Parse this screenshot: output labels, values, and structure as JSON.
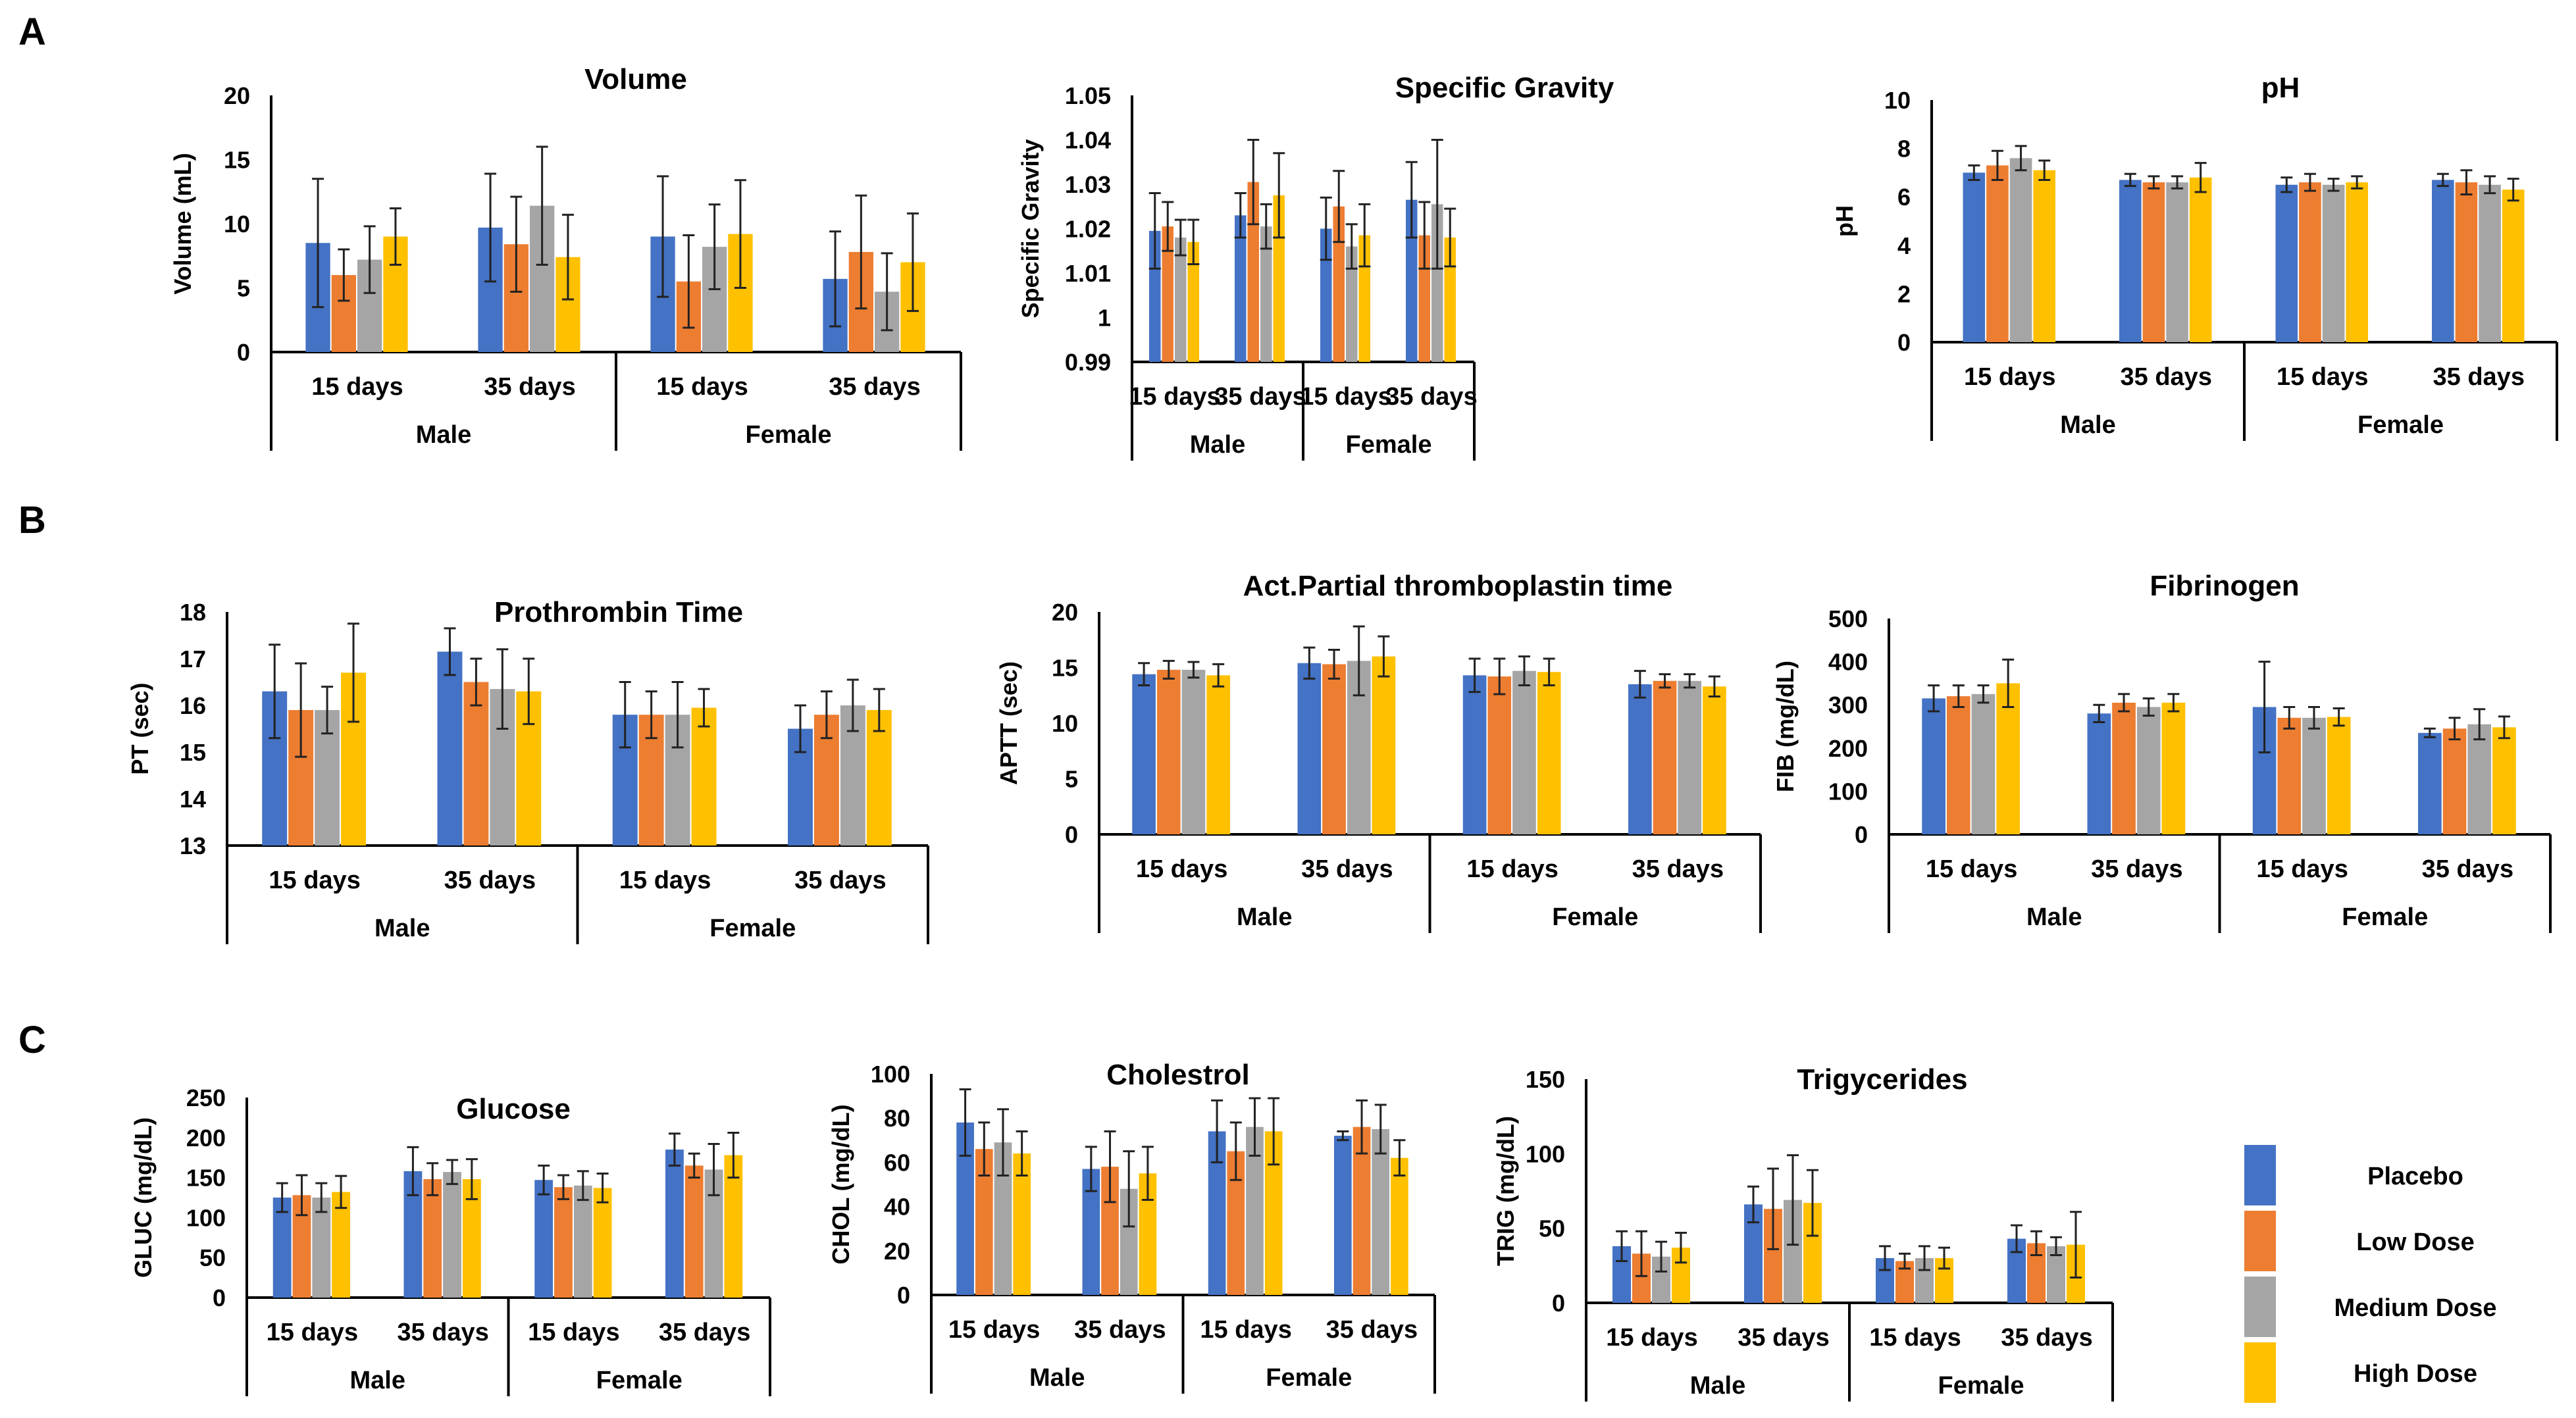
{
  "colors": {
    "placebo": "#4472C4",
    "low": "#ED7D31",
    "medium": "#A5A5A5",
    "high": "#FFC000",
    "axis": "#000000",
    "error": "#222222"
  },
  "legend": {
    "items": [
      {
        "label": "Placebo",
        "color": "#4472C4"
      },
      {
        "label": "Low Dose",
        "color": "#ED7D31"
      },
      {
        "label": "Medium Dose",
        "color": "#A5A5A5"
      },
      {
        "label": "High Dose",
        "color": "#FFC000"
      }
    ]
  },
  "panels": [
    {
      "label": "A"
    },
    {
      "label": "B"
    },
    {
      "label": "C"
    }
  ],
  "chart_data": [
    {
      "id": "volume",
      "type": "bar",
      "title": "Volume",
      "ylabel": "Volume (mL)",
      "ylim": [
        0,
        20
      ],
      "yticks": [
        "0",
        "5",
        "10",
        "15",
        "20"
      ],
      "groups": [
        "15 days",
        "35 days",
        "15 days",
        "35 days"
      ],
      "sexes": [
        "Male",
        "Female"
      ],
      "series": [
        {
          "name": "Placebo",
          "values": [
            8.5,
            9.7,
            9,
            5.7
          ],
          "errors": [
            5,
            4.2,
            4.7,
            3.7
          ]
        },
        {
          "name": "Low Dose",
          "values": [
            6,
            8.4,
            5.5,
            7.8
          ],
          "errors": [
            2,
            3.7,
            3.6,
            4.4
          ]
        },
        {
          "name": "Medium Dose",
          "values": [
            7.2,
            11.4,
            8.2,
            4.7
          ],
          "errors": [
            2.6,
            4.6,
            3.3,
            3
          ]
        },
        {
          "name": "High Dose",
          "values": [
            9,
            7.4,
            9.2,
            7
          ],
          "errors": [
            2.2,
            3.3,
            4.2,
            3.8
          ]
        }
      ]
    },
    {
      "id": "sg",
      "type": "bar",
      "title": "Specific Gravity",
      "ylabel": "Specific Gravity",
      "ylim": [
        0.99,
        1.05
      ],
      "yticks": [
        "0.99",
        "1",
        "1.01",
        "1.02",
        "1.03",
        "1.04",
        "1.05"
      ],
      "groups": [
        "15 days",
        "35 days",
        "15 days",
        "35 days"
      ],
      "sexes": [
        "Male",
        "Female"
      ],
      "series": [
        {
          "name": "Placebo",
          "values": [
            1.0195,
            1.023,
            1.02,
            1.0265
          ],
          "errors": [
            0.0085,
            0.005,
            0.007,
            0.0085
          ]
        },
        {
          "name": "Low Dose",
          "values": [
            1.0205,
            1.0305,
            1.025,
            1.0185
          ],
          "errors": [
            0.0055,
            0.0095,
            0.008,
            0.0075
          ]
        },
        {
          "name": "Medium Dose",
          "values": [
            1.018,
            1.0205,
            1.016,
            1.0255
          ],
          "errors": [
            0.004,
            0.005,
            0.005,
            0.0145
          ]
        },
        {
          "name": "High Dose",
          "values": [
            1.017,
            1.0275,
            1.0185,
            1.018
          ],
          "errors": [
            0.005,
            0.0095,
            0.007,
            0.0065
          ]
        }
      ]
    },
    {
      "id": "ph",
      "type": "bar",
      "title": "pH",
      "ylabel": "pH",
      "ylim": [
        0,
        10
      ],
      "yticks": [
        "0",
        "2",
        "4",
        "6",
        "8",
        "10"
      ],
      "groups": [
        "15 days",
        "35 days",
        "15 days",
        "35 days"
      ],
      "sexes": [
        "Male",
        "Female"
      ],
      "series": [
        {
          "name": "Placebo",
          "values": [
            7,
            6.7,
            6.5,
            6.7
          ],
          "errors": [
            0.3,
            0.25,
            0.3,
            0.25
          ]
        },
        {
          "name": "Low Dose",
          "values": [
            7.3,
            6.6,
            6.6,
            6.6
          ],
          "errors": [
            0.6,
            0.25,
            0.35,
            0.5
          ]
        },
        {
          "name": "Medium Dose",
          "values": [
            7.6,
            6.6,
            6.5,
            6.5
          ],
          "errors": [
            0.5,
            0.25,
            0.25,
            0.35
          ]
        },
        {
          "name": "High Dose",
          "values": [
            7.1,
            6.8,
            6.6,
            6.3
          ],
          "errors": [
            0.4,
            0.6,
            0.25,
            0.45
          ]
        }
      ]
    },
    {
      "id": "pt",
      "type": "bar",
      "title": "Prothrombin Time",
      "ylabel": "PT (sec)",
      "ylim": [
        13,
        18
      ],
      "yticks": [
        "13",
        "14",
        "15",
        "16",
        "17",
        "18"
      ],
      "groups": [
        "15 days",
        "35 days",
        "15 days",
        "35 days"
      ],
      "sexes": [
        "Male",
        "Female"
      ],
      "series": [
        {
          "name": "Placebo",
          "values": [
            16.3,
            17.15,
            15.8,
            15.5
          ],
          "errors": [
            1,
            0.5,
            0.7,
            0.5
          ]
        },
        {
          "name": "Low Dose",
          "values": [
            15.9,
            16.5,
            15.8,
            15.8
          ],
          "errors": [
            1,
            0.5,
            0.5,
            0.5
          ]
        },
        {
          "name": "Medium Dose",
          "values": [
            15.9,
            16.35,
            15.8,
            16
          ],
          "errors": [
            0.5,
            0.85,
            0.7,
            0.55
          ]
        },
        {
          "name": "High Dose",
          "values": [
            16.7,
            16.3,
            15.95,
            15.9
          ],
          "errors": [
            1.05,
            0.7,
            0.4,
            0.45
          ]
        }
      ]
    },
    {
      "id": "aptt",
      "type": "bar",
      "title": "Act.Partial thromboplastin time",
      "ylabel": "APTT (sec)",
      "ylim": [
        0,
        20
      ],
      "yticks": [
        "0",
        "5",
        "10",
        "15",
        "20"
      ],
      "groups": [
        "15 days",
        "35 days",
        "15 days",
        "35 days"
      ],
      "sexes": [
        "Male",
        "Female"
      ],
      "series": [
        {
          "name": "Placebo",
          "values": [
            14.4,
            15.4,
            14.3,
            13.5
          ],
          "errors": [
            1,
            1.4,
            1.5,
            1.2
          ]
        },
        {
          "name": "Low Dose",
          "values": [
            14.8,
            15.3,
            14.2,
            13.8
          ],
          "errors": [
            0.8,
            1.3,
            1.6,
            0.6
          ]
        },
        {
          "name": "Medium Dose",
          "values": [
            14.8,
            15.6,
            14.7,
            13.8
          ],
          "errors": [
            0.7,
            3.1,
            1.3,
            0.6
          ]
        },
        {
          "name": "High Dose",
          "values": [
            14.3,
            16,
            14.6,
            13.3
          ],
          "errors": [
            1,
            1.8,
            1.2,
            0.9
          ]
        }
      ]
    },
    {
      "id": "fib",
      "type": "bar",
      "title": "Fibrinogen",
      "ylabel": "FIB (mg/dL)",
      "ylim": [
        0,
        500
      ],
      "yticks": [
        "0",
        "100",
        "200",
        "300",
        "400",
        "500"
      ],
      "groups": [
        "15 days",
        "35 days",
        "15 days",
        "35 days"
      ],
      "sexes": [
        "Male",
        "Female"
      ],
      "series": [
        {
          "name": "Placebo",
          "values": [
            315,
            280,
            295,
            235
          ],
          "errors": [
            30,
            20,
            105,
            10
          ]
        },
        {
          "name": "Low Dose",
          "values": [
            320,
            305,
            270,
            245
          ],
          "errors": [
            25,
            20,
            25,
            25
          ]
        },
        {
          "name": "Medium Dose",
          "values": [
            325,
            295,
            270,
            255
          ],
          "errors": [
            20,
            20,
            25,
            35
          ]
        },
        {
          "name": "High Dose",
          "values": [
            350,
            305,
            272,
            248
          ],
          "errors": [
            55,
            20,
            20,
            25
          ]
        }
      ]
    },
    {
      "id": "gluc",
      "type": "bar",
      "title": "Glucose",
      "ylabel": "GLUC (mg/dL)",
      "ylim": [
        0,
        250
      ],
      "yticks": [
        "0",
        "50",
        "100",
        "150",
        "200",
        "250"
      ],
      "groups": [
        "15 days",
        "35 days",
        "15 days",
        "35 days"
      ],
      "sexes": [
        "Male",
        "Female"
      ],
      "series": [
        {
          "name": "Placebo",
          "values": [
            125,
            158,
            147,
            185
          ],
          "errors": [
            18,
            30,
            18,
            20
          ]
        },
        {
          "name": "Low Dose",
          "values": [
            128,
            148,
            138,
            165
          ],
          "errors": [
            25,
            20,
            15,
            15
          ]
        },
        {
          "name": "Medium Dose",
          "values": [
            125,
            157,
            140,
            160
          ],
          "errors": [
            18,
            15,
            18,
            32
          ]
        },
        {
          "name": "High Dose",
          "values": [
            132,
            148,
            137,
            178
          ],
          "errors": [
            20,
            25,
            18,
            28
          ]
        }
      ]
    },
    {
      "id": "chol",
      "type": "bar",
      "title": "Cholestrol",
      "ylabel": "CHOL (mg/dL)",
      "ylim": [
        0,
        100
      ],
      "yticks": [
        "0",
        "20",
        "40",
        "60",
        "80",
        "100"
      ],
      "groups": [
        "15 days",
        "35 days",
        "15 days",
        "35 days"
      ],
      "sexes": [
        "Male",
        "Female"
      ],
      "series": [
        {
          "name": "Placebo",
          "values": [
            78,
            57,
            74,
            72
          ],
          "errors": [
            15,
            10,
            14,
            2
          ]
        },
        {
          "name": "Low Dose",
          "values": [
            66,
            58,
            65,
            76
          ],
          "errors": [
            12,
            16,
            13,
            12
          ]
        },
        {
          "name": "Medium Dose",
          "values": [
            69,
            48,
            76,
            75
          ],
          "errors": [
            15,
            17,
            13,
            11
          ]
        },
        {
          "name": "High Dose",
          "values": [
            64,
            55,
            74,
            62
          ],
          "errors": [
            10,
            12,
            15,
            8
          ]
        }
      ]
    },
    {
      "id": "trig",
      "type": "bar",
      "title": "Trigycerides",
      "ylabel": "TRIG (mg/dL)",
      "ylim": [
        0,
        150
      ],
      "yticks": [
        "0",
        "50",
        "100",
        "150"
      ],
      "groups": [
        "15 days",
        "35 days",
        "15 days",
        "35 days"
      ],
      "sexes": [
        "Male",
        "Female"
      ],
      "series": [
        {
          "name": "Placebo",
          "values": [
            38,
            66,
            30,
            43
          ],
          "errors": [
            10,
            12,
            8,
            9
          ]
        },
        {
          "name": "Low Dose",
          "values": [
            33,
            63,
            28,
            40
          ],
          "errors": [
            15,
            27,
            5,
            8
          ]
        },
        {
          "name": "Medium Dose",
          "values": [
            31,
            69,
            30,
            38
          ],
          "errors": [
            10,
            30,
            8,
            6
          ]
        },
        {
          "name": "High Dose",
          "values": [
            37,
            67,
            30,
            39
          ],
          "errors": [
            10,
            22,
            7,
            22
          ]
        }
      ]
    }
  ]
}
